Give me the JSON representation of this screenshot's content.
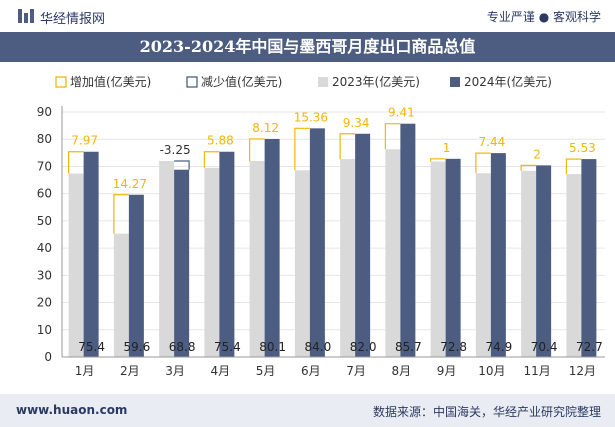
{
  "header": {
    "brand": "华经情报网",
    "slogan": "专业严谨 ● 客观科学"
  },
  "footer": {
    "site": "www.huaon.com",
    "source": "数据来源：中国海关，华经产业研究院整理"
  },
  "colors": {
    "bar2023": "#d9d9d9",
    "bar2024": "#4d5d82",
    "increase": "#f2b705",
    "decrease": "#4d5d82",
    "titlebar": "#4d5d82"
  },
  "chart_data": {
    "type": "bar",
    "title": "2023-2024年中国与墨西哥月度出口商品总值",
    "categories": [
      "1月",
      "2月",
      "3月",
      "4月",
      "5月",
      "6月",
      "7月",
      "8月",
      "9月",
      "10月",
      "11月",
      "12月"
    ],
    "series": [
      {
        "name": "2023年(亿美元)",
        "values": [
          67.4,
          45.3,
          72.0,
          69.5,
          72.0,
          68.6,
          72.7,
          76.3,
          71.8,
          67.5,
          68.4,
          67.2
        ]
      },
      {
        "name": "2024年(亿美元)",
        "values": [
          75.4,
          59.6,
          68.8,
          75.4,
          80.1,
          84.0,
          82.0,
          85.7,
          72.8,
          74.9,
          70.4,
          72.7
        ]
      }
    ],
    "change": [
      {
        "type": "increase",
        "label": "7.97"
      },
      {
        "type": "increase",
        "label": "14.27"
      },
      {
        "type": "decrease",
        "label": "-3.25"
      },
      {
        "type": "increase",
        "label": "5.88"
      },
      {
        "type": "increase",
        "label": "8.12"
      },
      {
        "type": "increase",
        "label": "15.36"
      },
      {
        "type": "increase",
        "label": "9.34"
      },
      {
        "type": "increase",
        "label": "9.41"
      },
      {
        "type": "increase",
        "label": "1"
      },
      {
        "type": "increase",
        "label": "7.44"
      },
      {
        "type": "increase",
        "label": "2"
      },
      {
        "type": "increase",
        "label": "5.53"
      }
    ],
    "value_labels": [
      "75.4",
      "59.6",
      "68.8",
      "75.4",
      "80.1",
      "84.0",
      "82.0",
      "85.7",
      "72.8",
      "74.9",
      "70.4",
      "72.7"
    ],
    "legend": [
      "增加值(亿美元)",
      "减少值(亿美元)",
      "2023年(亿美元)",
      "2024年(亿美元)"
    ],
    "yticks": [
      "0",
      "10",
      "20",
      "30",
      "40",
      "50",
      "60",
      "70",
      "80",
      "90"
    ],
    "ylim": [
      0,
      90
    ],
    "legend_position": "top"
  }
}
